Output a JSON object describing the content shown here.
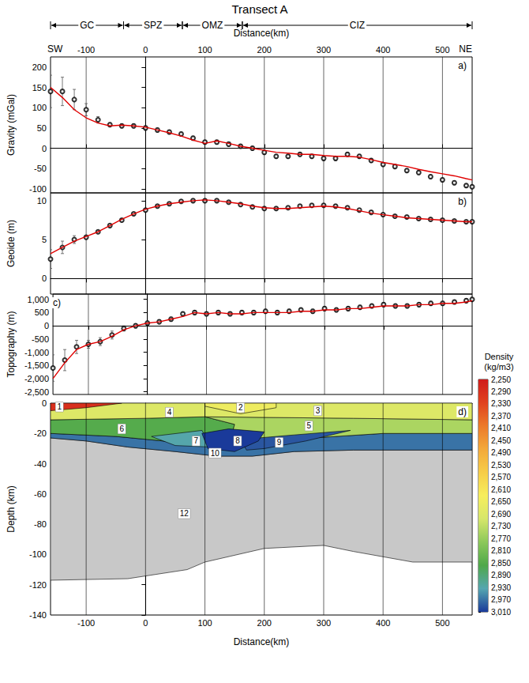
{
  "chart_data": [
    {
      "type": "line",
      "title": "Transect A",
      "ends": [
        "SW",
        "NE"
      ],
      "zones": [
        {
          "label": "GC",
          "from": -160,
          "to": -37
        },
        {
          "label": "SPZ",
          "from": -37,
          "to": 62
        },
        {
          "label": "OMZ",
          "from": 62,
          "to": 163
        },
        {
          "label": "CIZ",
          "from": 163,
          "to": 550
        }
      ],
      "panel": "a)",
      "xlabel": "Distance(km)",
      "ylabel": "Gravity (mGal)",
      "xlim": [
        -160,
        550
      ],
      "xticks": [
        -100,
        0,
        100,
        200,
        300,
        400,
        500
      ],
      "ylim": [
        -110,
        225
      ],
      "yticks": [
        -100,
        -50,
        0,
        50,
        100,
        150,
        200
      ],
      "grid": true,
      "tick_labels": true,
      "x": [
        -160,
        -140,
        -120,
        -100,
        -80,
        -60,
        -40,
        -20,
        0,
        20,
        40,
        60,
        80,
        100,
        120,
        140,
        160,
        180,
        200,
        220,
        240,
        260,
        280,
        300,
        320,
        340,
        360,
        380,
        400,
        420,
        440,
        460,
        480,
        500,
        520,
        540,
        550
      ],
      "series": [
        {
          "type": "scatter",
          "color": "#000000",
          "marker": "circle",
          "values": [
            140,
            140,
            120,
            95,
            70,
            58,
            55,
            55,
            50,
            45,
            40,
            35,
            25,
            15,
            15,
            10,
            5,
            0,
            -10,
            -20,
            -20,
            -15,
            -20,
            -25,
            -25,
            -15,
            -20,
            -30,
            -40,
            -45,
            -55,
            -60,
            -70,
            -78,
            -85,
            -92,
            -95
          ],
          "errors": [
            40,
            35,
            25,
            15,
            8,
            5,
            5,
            5,
            5,
            5,
            5,
            5,
            5,
            5,
            5,
            5,
            5,
            5,
            5,
            5,
            5,
            5,
            5,
            5,
            5,
            5,
            5,
            5,
            5,
            5,
            5,
            5,
            5,
            5,
            5,
            5,
            5
          ]
        },
        {
          "type": "line",
          "color": "#e00000",
          "line_style": "solid",
          "values": [
            150,
            125,
            95,
            75,
            62,
            55,
            57,
            55,
            52,
            45,
            38,
            30,
            20,
            12,
            18,
            12,
            5,
            0,
            -5,
            -10,
            -12,
            -15,
            -15,
            -18,
            -20,
            -20,
            -22,
            -28,
            -35,
            -40,
            -45,
            -52,
            -58,
            -63,
            -68,
            -75,
            -78
          ]
        }
      ]
    },
    {
      "type": "line",
      "panel": "b)",
      "ylabel": "Geoide (m)",
      "xlim": [
        -160,
        550
      ],
      "xticks": [
        -100,
        0,
        100,
        200,
        300,
        400,
        500
      ],
      "ylim": [
        -2,
        11
      ],
      "yticks": [
        0,
        5,
        10
      ],
      "grid": true,
      "tick_labels": "y",
      "x": [
        -160,
        -140,
        -120,
        -100,
        -80,
        -60,
        -40,
        -20,
        0,
        20,
        40,
        60,
        80,
        100,
        120,
        140,
        160,
        180,
        200,
        220,
        240,
        260,
        280,
        300,
        320,
        340,
        360,
        380,
        400,
        420,
        440,
        460,
        480,
        500,
        520,
        540,
        550
      ],
      "series": [
        {
          "type": "scatter",
          "color": "#000000",
          "marker": "circle",
          "values": [
            2.5,
            4,
            5,
            5.3,
            6,
            6.8,
            7.5,
            8.3,
            8.8,
            9.3,
            9.6,
            9.9,
            10,
            10,
            10,
            9.8,
            9.5,
            9.2,
            9,
            9,
            9.1,
            9.3,
            9.4,
            9.4,
            9.3,
            9.1,
            8.8,
            8.5,
            8.2,
            8,
            7.9,
            7.7,
            7.6,
            7.5,
            7.4,
            7.3,
            7.3
          ],
          "errors": [
            1.2,
            0.8,
            0.5,
            0.2,
            0.2,
            0.2,
            0.2,
            0.2,
            0.2,
            0.2,
            0.2,
            0.2,
            0.2,
            0.2,
            0.2,
            0.2,
            0.2,
            0.2,
            0.2,
            0.2,
            0.2,
            0.2,
            0.2,
            0.2,
            0.2,
            0.2,
            0.2,
            0.2,
            0.2,
            0.2,
            0.2,
            0.2,
            0.2,
            0.2,
            0.2,
            0.2,
            0.2
          ]
        },
        {
          "type": "line",
          "color": "#e00000",
          "line_style": "solid",
          "values": [
            3.2,
            4,
            4.8,
            5.4,
            6,
            6.8,
            7.6,
            8.3,
            8.9,
            9.3,
            9.6,
            9.8,
            10,
            10.1,
            10,
            9.8,
            9.6,
            9.3,
            9.1,
            9,
            9,
            9.1,
            9.2,
            9.3,
            9.2,
            9,
            8.7,
            8.4,
            8.2,
            8,
            7.8,
            7.7,
            7.6,
            7.5,
            7.4,
            7.3,
            7.3
          ]
        }
      ]
    },
    {
      "type": "line",
      "panel": "c)",
      "ylabel": "Topography (m)",
      "xlim": [
        -160,
        550
      ],
      "xticks": [
        -100,
        0,
        100,
        200,
        300,
        400,
        500
      ],
      "ylim": [
        -2600,
        1200
      ],
      "yticks": [
        -2500,
        -2000,
        -1500,
        -1000,
        -500,
        0,
        500,
        1000
      ],
      "grid": true,
      "tick_labels": "y",
      "x": [
        -160,
        -140,
        -120,
        -100,
        -80,
        -60,
        -40,
        -20,
        0,
        20,
        40,
        60,
        80,
        100,
        120,
        140,
        160,
        180,
        200,
        220,
        240,
        260,
        280,
        300,
        320,
        340,
        360,
        380,
        400,
        420,
        440,
        460,
        480,
        500,
        520,
        540,
        550
      ],
      "series": [
        {
          "type": "scatter",
          "color": "#000000",
          "marker": "circle",
          "values": [
            -1600,
            -1300,
            -800,
            -700,
            -600,
            -350,
            -100,
            0,
            100,
            150,
            250,
            450,
            500,
            450,
            500,
            450,
            500,
            500,
            550,
            500,
            550,
            600,
            550,
            650,
            600,
            650,
            700,
            750,
            800,
            750,
            750,
            800,
            850,
            850,
            900,
            950,
            1000
          ],
          "errors": [
            500,
            400,
            250,
            150,
            150,
            150,
            100,
            80,
            80,
            80,
            80,
            80,
            80,
            80,
            80,
            80,
            80,
            80,
            80,
            80,
            80,
            80,
            80,
            80,
            80,
            80,
            80,
            80,
            80,
            80,
            80,
            80,
            80,
            80,
            80,
            80,
            80
          ]
        },
        {
          "type": "line",
          "color": "#e00000",
          "line_style": "solid",
          "values": [
            -2000,
            -1400,
            -900,
            -700,
            -600,
            -400,
            -150,
            0,
            100,
            150,
            250,
            350,
            500,
            450,
            500,
            450,
            450,
            500,
            500,
            500,
            500,
            550,
            550,
            600,
            600,
            650,
            650,
            700,
            750,
            750,
            750,
            800,
            800,
            850,
            850,
            900,
            950
          ]
        }
      ]
    },
    {
      "type": "section",
      "panel": "d)",
      "xlabel": "Distance(km)",
      "ylabel": "Depth (km)",
      "xlim": [
        -160,
        550
      ],
      "xticks": [
        -100,
        0,
        100,
        200,
        300,
        400,
        500
      ],
      "ylim": [
        -140,
        0
      ],
      "yticks": [
        -140,
        -120,
        -100,
        -80,
        -60,
        -40,
        -20,
        0
      ],
      "grid": true,
      "tick_labels": true,
      "bodies": [
        {
          "label": "12",
          "density": null,
          "color": "#c8c8c8",
          "label_at": [
            65,
            -73
          ],
          "polygon": [
            [
              -160,
              -23
            ],
            [
              -100,
              -25
            ],
            [
              -30,
              -29
            ],
            [
              50,
              -32
            ],
            [
              120,
              -35
            ],
            [
              180,
              -35
            ],
            [
              250,
              -32
            ],
            [
              350,
              -31
            ],
            [
              550,
              -31
            ],
            [
              550,
              -105
            ],
            [
              450,
              -105
            ],
            [
              350,
              -98
            ],
            [
              300,
              -94
            ],
            [
              200,
              -96
            ],
            [
              100,
              -105
            ],
            [
              70,
              -110
            ],
            [
              -30,
              -116
            ],
            [
              -160,
              -117
            ]
          ]
        },
        {
          "label": "10",
          "density": 2970,
          "label_at": [
            117,
            -33
          ],
          "polygon": [
            [
              -160,
              -20
            ],
            [
              -50,
              -22
            ],
            [
              30,
              -25
            ],
            [
              100,
              -28
            ],
            [
              200,
              -29
            ],
            [
              280,
              -23
            ],
            [
              400,
              -20
            ],
            [
              550,
              -20
            ],
            [
              550,
              -31
            ],
            [
              350,
              -31
            ],
            [
              250,
              -32
            ],
            [
              180,
              -35
            ],
            [
              120,
              -35
            ],
            [
              50,
              -32
            ],
            [
              -30,
              -29
            ],
            [
              -100,
              -25
            ],
            [
              -160,
              -23
            ]
          ]
        },
        {
          "label": "6",
          "density": 2850,
          "label_at": [
            -40,
            -17
          ],
          "polygon": [
            [
              -160,
              -11
            ],
            [
              0,
              -10
            ],
            [
              100,
              -9
            ],
            [
              150,
              -14
            ],
            [
              140,
              -29
            ],
            [
              100,
              -28
            ],
            [
              30,
              -25
            ],
            [
              -50,
              -22
            ],
            [
              -160,
              -20
            ]
          ]
        },
        {
          "label": "5",
          "density": 2750,
          "label_at": [
            275,
            -15
          ],
          "polygon": [
            [
              100,
              -9
            ],
            [
              350,
              -10
            ],
            [
              550,
              -11
            ],
            [
              550,
              -20
            ],
            [
              400,
              -20
            ],
            [
              280,
              -23
            ],
            [
              200,
              -29
            ],
            [
              140,
              -29
            ],
            [
              150,
              -14
            ]
          ]
        },
        {
          "label": "4",
          "density": 2690,
          "label_at": [
            40,
            -6
          ],
          "polygon": [
            [
              -160,
              0
            ],
            [
              100,
              0
            ],
            [
              100,
              -9
            ],
            [
              0,
              -10
            ],
            [
              -160,
              -11
            ]
          ]
        },
        {
          "label": "3",
          "density": 2690,
          "label_at": [
            290,
            -5
          ],
          "polygon": [
            [
              100,
              0
            ],
            [
              550,
              0
            ],
            [
              550,
              -11
            ],
            [
              350,
              -10
            ],
            [
              100,
              -9
            ]
          ]
        },
        {
          "label": "2",
          "density": 2650,
          "label_at": [
            160,
            -3
          ],
          "polygon": [
            [
              100,
              0
            ],
            [
              220,
              0
            ],
            [
              220,
              -3
            ],
            [
              160,
              -7
            ],
            [
              100,
              -2
            ]
          ]
        },
        {
          "label": "1",
          "density": 2290,
          "label_at": [
            -145,
            -2.5
          ],
          "polygon": [
            [
              -160,
              0
            ],
            [
              -40,
              0
            ],
            [
              -100,
              -3
            ],
            [
              -160,
              -5
            ]
          ]
        },
        {
          "label": "7",
          "density": 2930,
          "label_at": [
            85,
            -25
          ],
          "polygon": [
            [
              10,
              -22
            ],
            [
              95,
              -18
            ],
            [
              110,
              -29
            ],
            [
              50,
              -28
            ]
          ]
        },
        {
          "label": "9",
          "density": 2990,
          "label_at": [
            225,
            -26
          ],
          "polygon": [
            [
              160,
              -24
            ],
            [
              250,
              -21
            ],
            [
              345,
              -18
            ],
            [
              270,
              -25
            ],
            [
              200,
              -30
            ],
            [
              170,
              -31
            ]
          ]
        },
        {
          "label": "8",
          "density": 3010,
          "label_at": [
            155,
            -25
          ],
          "polygon": [
            [
              95,
              -20
            ],
            [
              140,
              -17
            ],
            [
              200,
              -19
            ],
            [
              190,
              -25
            ],
            [
              150,
              -32
            ],
            [
              105,
              -30
            ]
          ]
        }
      ],
      "colorbar": {
        "title": "Density (kg/m3)",
        "range": [
          2250,
          3010
        ],
        "ticks": [
          2250,
          2290,
          2330,
          2370,
          2410,
          2450,
          2490,
          2530,
          2570,
          2610,
          2650,
          2690,
          2730,
          2770,
          2810,
          2850,
          2890,
          2930,
          2970,
          3010
        ],
        "colors": [
          "#d01c1c",
          "#e0421e",
          "#ec7a2a",
          "#f3a93a",
          "#f6cd48",
          "#f7ee5c",
          "#d6e66a",
          "#8cc85a",
          "#4fa84a",
          "#55a6b0",
          "#1a3a9a"
        ]
      }
    }
  ]
}
